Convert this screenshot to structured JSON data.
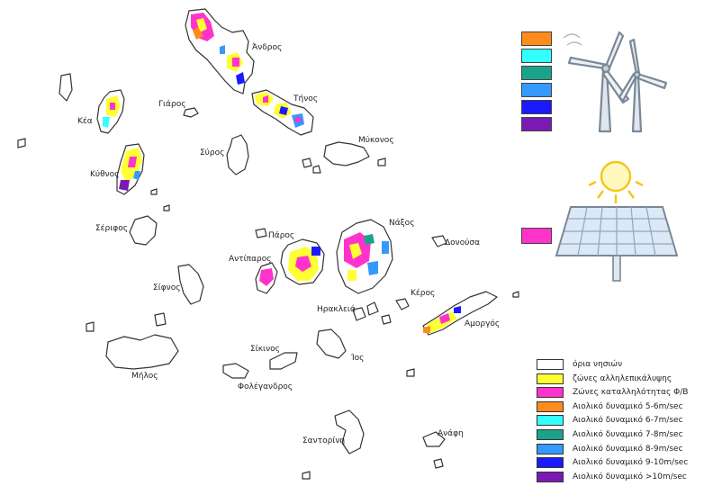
{
  "map": {
    "islands": [
      {
        "name": "Άνδρος"
      },
      {
        "name": "Τήνος"
      },
      {
        "name": "Κέα"
      },
      {
        "name": "Γιάρος"
      },
      {
        "name": "Σύρος"
      },
      {
        "name": "Μύκονος"
      },
      {
        "name": "Κύθνος"
      },
      {
        "name": "Σέριφος"
      },
      {
        "name": "Σίφνος"
      },
      {
        "name": "Πάρος"
      },
      {
        "name": "Αντίπαρος"
      },
      {
        "name": "Νάξος"
      },
      {
        "name": "Δονούσα"
      },
      {
        "name": "Κέρος"
      },
      {
        "name": "Ηρακλειά"
      },
      {
        "name": "Αμοργός"
      },
      {
        "name": "Μήλος"
      },
      {
        "name": "Σίκινος"
      },
      {
        "name": "Ίος"
      },
      {
        "name": "Φολέγανδρος"
      },
      {
        "name": "Σαντορίνη"
      },
      {
        "name": "Ανάφη"
      }
    ]
  },
  "legend": {
    "items": [
      {
        "label": "όρια νησιών",
        "color": "#ffffff"
      },
      {
        "label": "ζώνες αλληλεπικάλυψης",
        "color": "#ffff33"
      },
      {
        "label": "Ζώνες καταλληλότητας Φ/Β",
        "color": "#ff33cc"
      },
      {
        "label": "Αιολικό δυναμικό 5-6m/sec",
        "color": "#ff8c1a"
      },
      {
        "label": "Αιολικό δυναμικό 6-7m/sec",
        "color": "#33ffff"
      },
      {
        "label": "Αιολικό δυναμικό 7-8m/sec",
        "color": "#1aa38c"
      },
      {
        "label": "Αιολικό δυναμικό 8-9m/sec",
        "color": "#3399ff"
      },
      {
        "label": "Αιολικό δυναμικό 9-10m/sec",
        "color": "#1a1aff"
      },
      {
        "label": "Αιολικό δυναμικό >10m/sec",
        "color": "#7a1ab3"
      }
    ]
  },
  "wind_swatches": [
    "#ff8c1a",
    "#33ffff",
    "#1aa38c",
    "#3399ff",
    "#1a1aff",
    "#7a1ab3"
  ],
  "solar_swatch": "#ff33cc",
  "icons": {
    "wind": "wind-turbine-icon",
    "solar": "solar-panel-icon"
  }
}
